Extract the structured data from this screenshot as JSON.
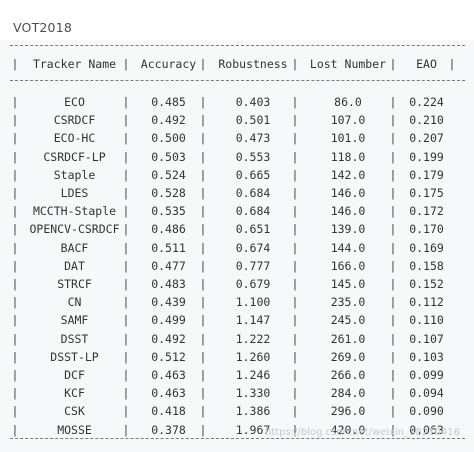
{
  "title": "VOT2018",
  "headers": [
    "Tracker Name",
    "Accuracy",
    "Robustness",
    "Lost Number",
    "EAO"
  ],
  "rows": [
    [
      "ECO",
      "0.485",
      "0.403",
      "86.0",
      "0.224"
    ],
    [
      "CSRDCF",
      "0.492",
      "0.501",
      "107.0",
      "0.210"
    ],
    [
      "ECO-HC",
      "0.500",
      "0.473",
      "101.0",
      "0.207"
    ],
    [
      "CSRDCF-LP",
      "0.503",
      "0.553",
      "118.0",
      "0.199"
    ],
    [
      "Staple",
      "0.524",
      "0.665",
      "142.0",
      "0.179"
    ],
    [
      "LDES",
      "0.528",
      "0.684",
      "146.0",
      "0.175"
    ],
    [
      "MCCTH-Staple",
      "0.535",
      "0.684",
      "146.0",
      "0.172"
    ],
    [
      "OPENCV-CSRDCF",
      "0.486",
      "0.651",
      "139.0",
      "0.170"
    ],
    [
      "BACF",
      "0.511",
      "0.674",
      "144.0",
      "0.169"
    ],
    [
      "DAT",
      "0.477",
      "0.777",
      "166.0",
      "0.158"
    ],
    [
      "STRCF",
      "0.483",
      "0.679",
      "145.0",
      "0.152"
    ],
    [
      "CN",
      "0.439",
      "1.100",
      "235.0",
      "0.112"
    ],
    [
      "SAMF",
      "0.499",
      "1.147",
      "245.0",
      "0.110"
    ],
    [
      "DSST",
      "0.492",
      "1.222",
      "261.0",
      "0.107"
    ],
    [
      "DSST-LP",
      "0.512",
      "1.260",
      "269.0",
      "0.103"
    ],
    [
      "DCF",
      "0.463",
      "1.246",
      "266.0",
      "0.099"
    ],
    [
      "KCF",
      "0.463",
      "1.330",
      "284.0",
      "0.094"
    ],
    [
      "CSK",
      "0.418",
      "1.386",
      "296.0",
      "0.090"
    ],
    [
      "MOSSE",
      "0.378",
      "1.967",
      "420.0",
      "0.063"
    ]
  ],
  "watermark": "https://blog.csdn.net/weixin_38210416"
}
